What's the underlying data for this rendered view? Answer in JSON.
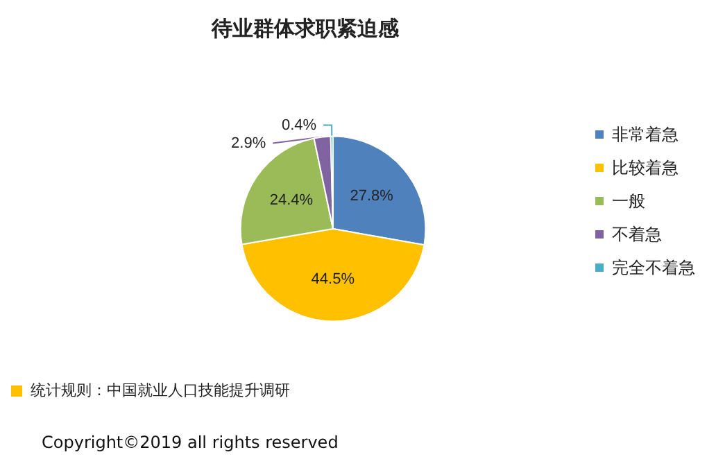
{
  "chart_data": {
    "type": "pie",
    "title": "待业群体求职紧迫感",
    "categories": [
      "非常着急",
      "比较着急",
      "一般",
      "不着急",
      "完全不着急"
    ],
    "values": [
      27.8,
      44.5,
      24.4,
      2.9,
      0.4
    ],
    "value_labels": [
      "27.8%",
      "44.5%",
      "24.4%",
      "2.9%",
      "0.4%"
    ],
    "colors": [
      "#4f81bd",
      "#ffc000",
      "#9bbb59",
      "#8064a2",
      "#4bacc6"
    ],
    "legend": "right",
    "annotations": [
      "统计规则：中国就业人口技能提升调研",
      "Copyright©2019 all rights reserved"
    ]
  }
}
